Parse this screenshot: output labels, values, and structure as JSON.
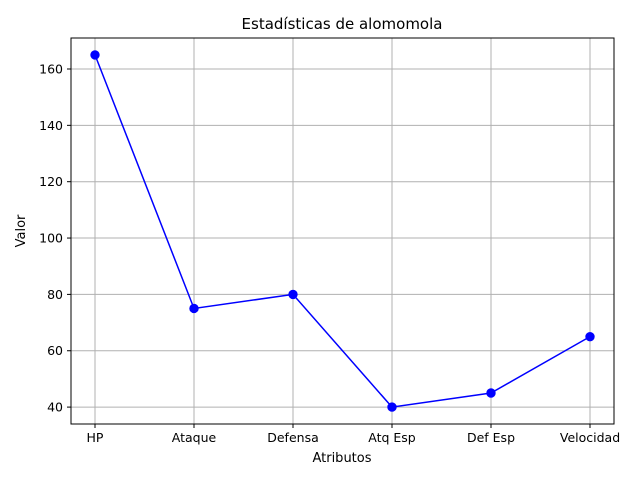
{
  "chart_data": {
    "type": "line",
    "title": "Estadísticas de alomomola",
    "xlabel": "Atributos",
    "ylabel": "Valor",
    "categories": [
      "HP",
      "Ataque",
      "Defensa",
      "Atq Esp",
      "Def Esp",
      "Velocidad"
    ],
    "series": [
      {
        "values": [
          165,
          75,
          80,
          40,
          45,
          65
        ],
        "color": "#0000ff",
        "marker": "circle"
      }
    ],
    "yticks": [
      40,
      60,
      80,
      100,
      120,
      140,
      160
    ],
    "ylim": [
      34,
      171
    ],
    "grid": true,
    "colors": {
      "line": "#0000ff",
      "grid": "#b0b0b0",
      "axes": "#000000"
    }
  }
}
